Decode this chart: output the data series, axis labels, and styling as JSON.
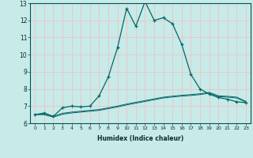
{
  "xlabel": "Humidex (Indice chaleur)",
  "ylabel": "",
  "background_color": "#c8eae8",
  "grid_color": "#e8c8c8",
  "line_color": "#006868",
  "xlim": [
    -0.5,
    23.5
  ],
  "ylim": [
    6,
    13
  ],
  "yticks": [
    6,
    7,
    8,
    9,
    10,
    11,
    12,
    13
  ],
  "xticks": [
    0,
    1,
    2,
    3,
    4,
    5,
    6,
    7,
    8,
    9,
    10,
    11,
    12,
    13,
    14,
    15,
    16,
    17,
    18,
    19,
    20,
    21,
    22,
    23
  ],
  "line1_x": [
    0,
    1,
    2,
    3,
    4,
    5,
    6,
    7,
    8,
    9,
    10,
    11,
    12,
    13,
    14,
    15,
    16,
    17,
    18,
    19,
    20,
    21,
    22,
    23
  ],
  "line1_y": [
    6.5,
    6.6,
    6.4,
    6.9,
    7.0,
    6.95,
    7.0,
    7.6,
    8.7,
    10.4,
    12.7,
    11.65,
    13.1,
    12.0,
    12.15,
    11.8,
    10.6,
    8.85,
    8.0,
    7.7,
    7.5,
    7.4,
    7.25,
    7.2
  ],
  "line2_x": [
    0,
    1,
    2,
    3,
    4,
    5,
    6,
    7,
    8,
    9,
    10,
    11,
    12,
    13,
    14,
    15,
    16,
    17,
    18,
    19,
    20,
    21,
    22,
    23
  ],
  "line2_y": [
    6.52,
    6.52,
    6.4,
    6.58,
    6.65,
    6.7,
    6.75,
    6.8,
    6.9,
    7.0,
    7.12,
    7.22,
    7.32,
    7.42,
    7.52,
    7.58,
    7.63,
    7.67,
    7.72,
    7.8,
    7.6,
    7.57,
    7.52,
    7.28
  ],
  "line3_x": [
    0,
    1,
    2,
    3,
    4,
    5,
    6,
    7,
    8,
    9,
    10,
    11,
    12,
    13,
    14,
    15,
    16,
    17,
    18,
    19,
    20,
    21,
    22,
    23
  ],
  "line3_y": [
    6.5,
    6.5,
    6.36,
    6.52,
    6.6,
    6.65,
    6.7,
    6.75,
    6.85,
    6.95,
    7.07,
    7.17,
    7.27,
    7.37,
    7.47,
    7.53,
    7.58,
    7.62,
    7.67,
    7.75,
    7.55,
    7.52,
    7.47,
    7.23
  ]
}
